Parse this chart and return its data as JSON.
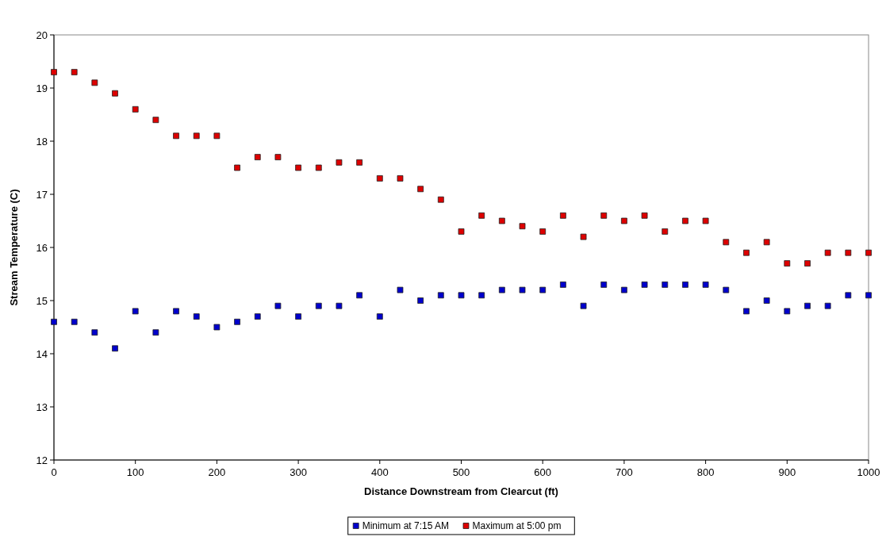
{
  "chart_data": {
    "type": "scatter",
    "xlabel": "Distance Downstream from Clearcut (ft)",
    "ylabel": "Stream Temperature (C)",
    "x": [
      0,
      25,
      50,
      75,
      100,
      125,
      150,
      175,
      200,
      225,
      250,
      275,
      300,
      325,
      350,
      375,
      400,
      425,
      450,
      475,
      500,
      525,
      550,
      575,
      600,
      625,
      650,
      675,
      700,
      725,
      750,
      775,
      800,
      825,
      850,
      875,
      900,
      925,
      950,
      975,
      1000
    ],
    "series": [
      {
        "name": "Minimum at 7:15 AM",
        "color": "#0000cc",
        "values": [
          14.6,
          14.6,
          14.4,
          14.1,
          14.8,
          14.4,
          14.8,
          14.7,
          14.5,
          14.6,
          14.7,
          14.9,
          14.7,
          14.9,
          14.9,
          15.1,
          14.7,
          15.2,
          15.0,
          15.1,
          15.1,
          15.1,
          15.2,
          15.2,
          15.2,
          15.3,
          14.9,
          15.3,
          15.2,
          15.3,
          15.3,
          15.3,
          15.3,
          15.2,
          14.8,
          15.0,
          14.8,
          14.9,
          14.9,
          15.1,
          15.1
        ]
      },
      {
        "name": "Maximum at 5:00 pm",
        "color": "#dd0000",
        "values": [
          19.3,
          19.3,
          19.1,
          18.9,
          18.6,
          18.4,
          18.1,
          18.1,
          18.1,
          17.5,
          17.7,
          17.7,
          17.5,
          17.5,
          17.6,
          17.6,
          17.3,
          17.3,
          17.1,
          16.9,
          16.3,
          16.6,
          16.5,
          16.4,
          16.3,
          16.6,
          16.2,
          16.6,
          16.5,
          16.6,
          16.3,
          16.5,
          16.5,
          16.1,
          15.9,
          16.1,
          15.7,
          15.7,
          15.9,
          15.9,
          15.9
        ]
      }
    ],
    "xlim": [
      0,
      1000
    ],
    "xticks": [
      0,
      100,
      200,
      300,
      400,
      500,
      600,
      700,
      800,
      900,
      1000
    ],
    "ylim": [
      12,
      20
    ],
    "yticks": [
      12,
      13,
      14,
      15,
      16,
      17,
      18,
      19,
      20
    ],
    "grid": false,
    "legend": "bottom",
    "marker": "square"
  }
}
